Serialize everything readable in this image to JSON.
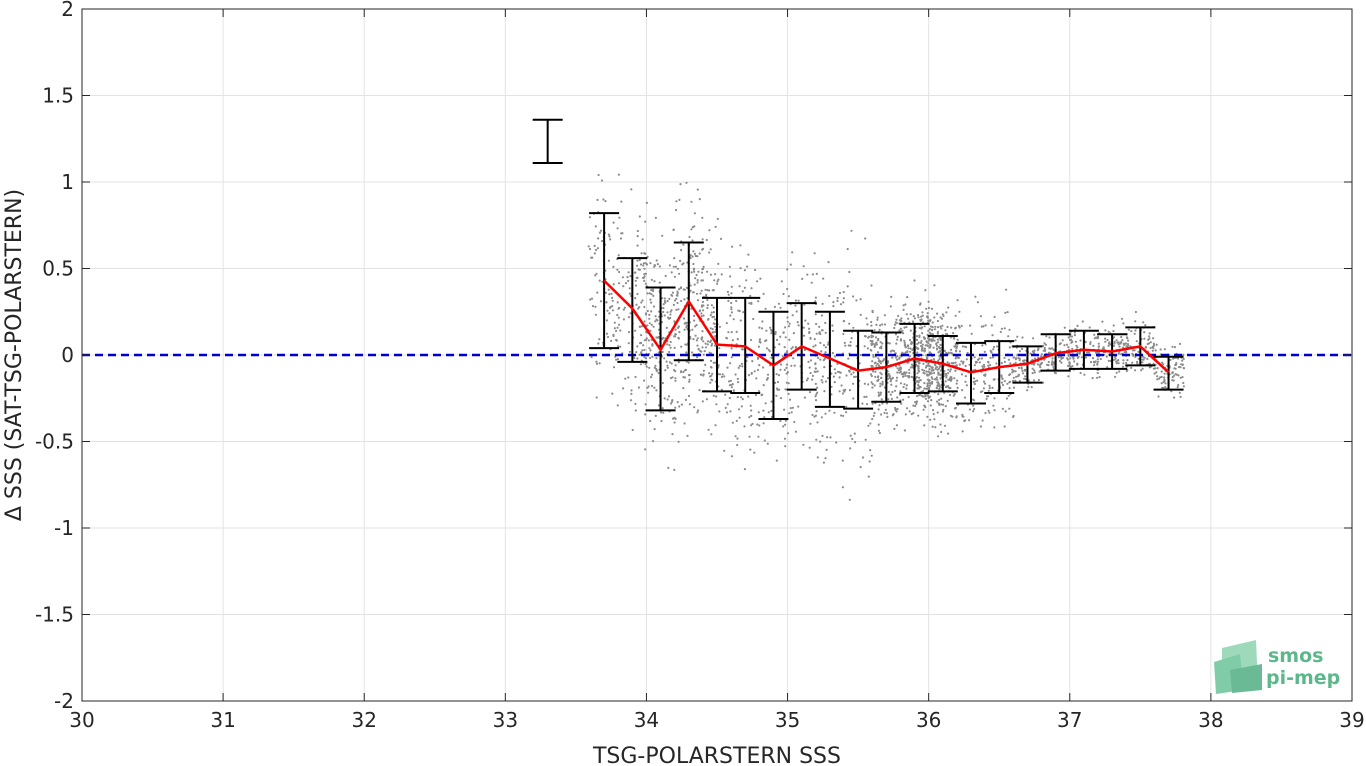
{
  "chart_data": {
    "type": "scatter",
    "xlabel": "TSG-POLARSTERN SSS",
    "ylabel": "Δ SSS (SAT-TSG-POLARSTERN)",
    "xlim": [
      30,
      39
    ],
    "ylim": [
      -2,
      2
    ],
    "x_ticks": [
      "30",
      "31",
      "32",
      "33",
      "34",
      "35",
      "36",
      "37",
      "38",
      "39"
    ],
    "y_ticks": [
      "2",
      "1.5",
      "1",
      "0.5",
      "0",
      "-0.5",
      "-1",
      "-1.5",
      "-2"
    ],
    "grid": true,
    "zero_line": {
      "y": 0,
      "style": "dashed",
      "color": "#0000cc"
    },
    "scatter_color": "#8c8c8c",
    "mean_line_color": "#ff0000",
    "errorbar_color": "#000000",
    "scatter_cloud_centers": [
      [
        33.7,
        0.4
      ],
      [
        33.9,
        0.3
      ],
      [
        34.0,
        0.2
      ],
      [
        34.1,
        0.05
      ],
      [
        34.2,
        0.1
      ],
      [
        34.3,
        0.3
      ],
      [
        34.4,
        0.2
      ],
      [
        34.5,
        0.1
      ],
      [
        34.7,
        0.0
      ],
      [
        34.9,
        -0.05
      ],
      [
        35.1,
        0.05
      ],
      [
        35.3,
        -0.05
      ],
      [
        35.5,
        -0.1
      ],
      [
        35.7,
        -0.05
      ],
      [
        35.9,
        -0.02
      ],
      [
        36.0,
        -0.05
      ],
      [
        36.1,
        -0.05
      ],
      [
        36.3,
        -0.1
      ],
      [
        36.5,
        -0.08
      ],
      [
        36.7,
        -0.05
      ],
      [
        36.9,
        0.0
      ],
      [
        37.1,
        0.02
      ],
      [
        37.3,
        0.02
      ],
      [
        37.5,
        0.04
      ],
      [
        37.7,
        -0.08
      ]
    ],
    "binned_stats": [
      {
        "x": 33.3,
        "mean": null,
        "low": 1.11,
        "high": 1.36
      },
      {
        "x": 33.7,
        "mean": 0.43,
        "low": 0.04,
        "high": 0.82
      },
      {
        "x": 33.9,
        "mean": 0.27,
        "low": -0.04,
        "high": 0.56
      },
      {
        "x": 34.1,
        "mean": 0.03,
        "low": -0.32,
        "high": 0.39
      },
      {
        "x": 34.3,
        "mean": 0.31,
        "low": -0.03,
        "high": 0.65
      },
      {
        "x": 34.5,
        "mean": 0.06,
        "low": -0.21,
        "high": 0.33
      },
      {
        "x": 34.7,
        "mean": 0.05,
        "low": -0.22,
        "high": 0.33
      },
      {
        "x": 34.9,
        "mean": -0.06,
        "low": -0.37,
        "high": 0.25
      },
      {
        "x": 35.1,
        "mean": 0.05,
        "low": -0.2,
        "high": 0.3
      },
      {
        "x": 35.3,
        "mean": -0.02,
        "low": -0.3,
        "high": 0.25
      },
      {
        "x": 35.5,
        "mean": -0.09,
        "low": -0.31,
        "high": 0.14
      },
      {
        "x": 35.7,
        "mean": -0.07,
        "low": -0.27,
        "high": 0.13
      },
      {
        "x": 35.9,
        "mean": -0.02,
        "low": -0.22,
        "high": 0.18
      },
      {
        "x": 36.1,
        "mean": -0.05,
        "low": -0.21,
        "high": 0.11
      },
      {
        "x": 36.3,
        "mean": -0.1,
        "low": -0.28,
        "high": 0.07
      },
      {
        "x": 36.5,
        "mean": -0.07,
        "low": -0.22,
        "high": 0.08
      },
      {
        "x": 36.7,
        "mean": -0.05,
        "low": -0.16,
        "high": 0.05
      },
      {
        "x": 36.9,
        "mean": 0.01,
        "low": -0.09,
        "high": 0.12
      },
      {
        "x": 37.1,
        "mean": 0.03,
        "low": -0.08,
        "high": 0.14
      },
      {
        "x": 37.3,
        "mean": 0.02,
        "low": -0.08,
        "high": 0.12
      },
      {
        "x": 37.5,
        "mean": 0.05,
        "low": -0.06,
        "high": 0.16
      },
      {
        "x": 37.7,
        "mean": -0.1,
        "low": -0.2,
        "high": -0.01
      }
    ]
  },
  "logo": {
    "line1": "smos",
    "line2": "pi-mep",
    "color": "#5cb88a"
  }
}
